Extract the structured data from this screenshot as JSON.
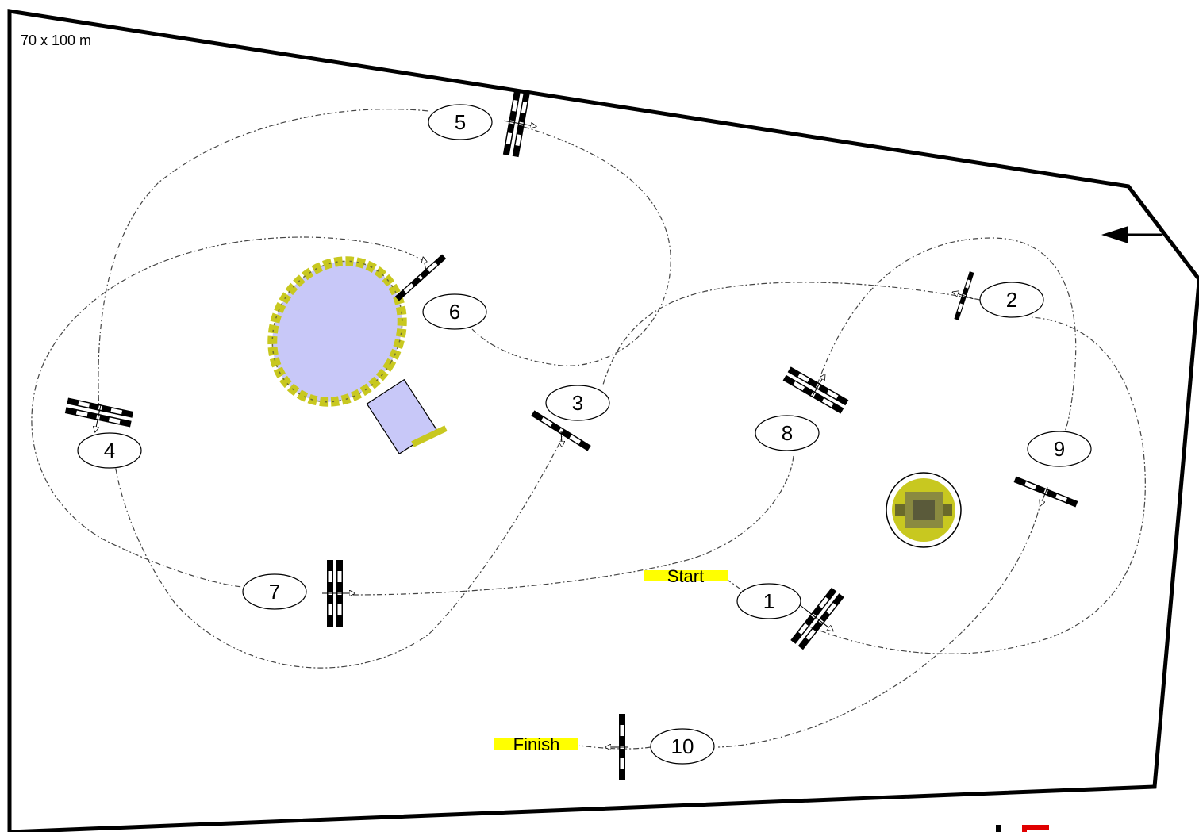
{
  "arena": {
    "dimensions_label": "70 x 100 m"
  },
  "labels": {
    "start": "Start",
    "finish": "Finish"
  },
  "obstacles": [
    {
      "number": "1"
    },
    {
      "number": "2"
    },
    {
      "number": "3"
    },
    {
      "number": "4"
    },
    {
      "number": "5"
    },
    {
      "number": "6"
    },
    {
      "number": "7"
    },
    {
      "number": "8"
    },
    {
      "number": "9"
    },
    {
      "number": "10"
    }
  ],
  "colors": {
    "fence": "#000000",
    "track": "#555555",
    "label_highlight": "#ffff00",
    "water": "#c8c8f8",
    "hedge": "#c8c820",
    "logo": "#e00000"
  },
  "icons": {
    "entry_arrow": "arrow-left-icon",
    "jump": "jump-pole-icon",
    "pond": "water-pond-icon",
    "bush": "bush-icon"
  }
}
